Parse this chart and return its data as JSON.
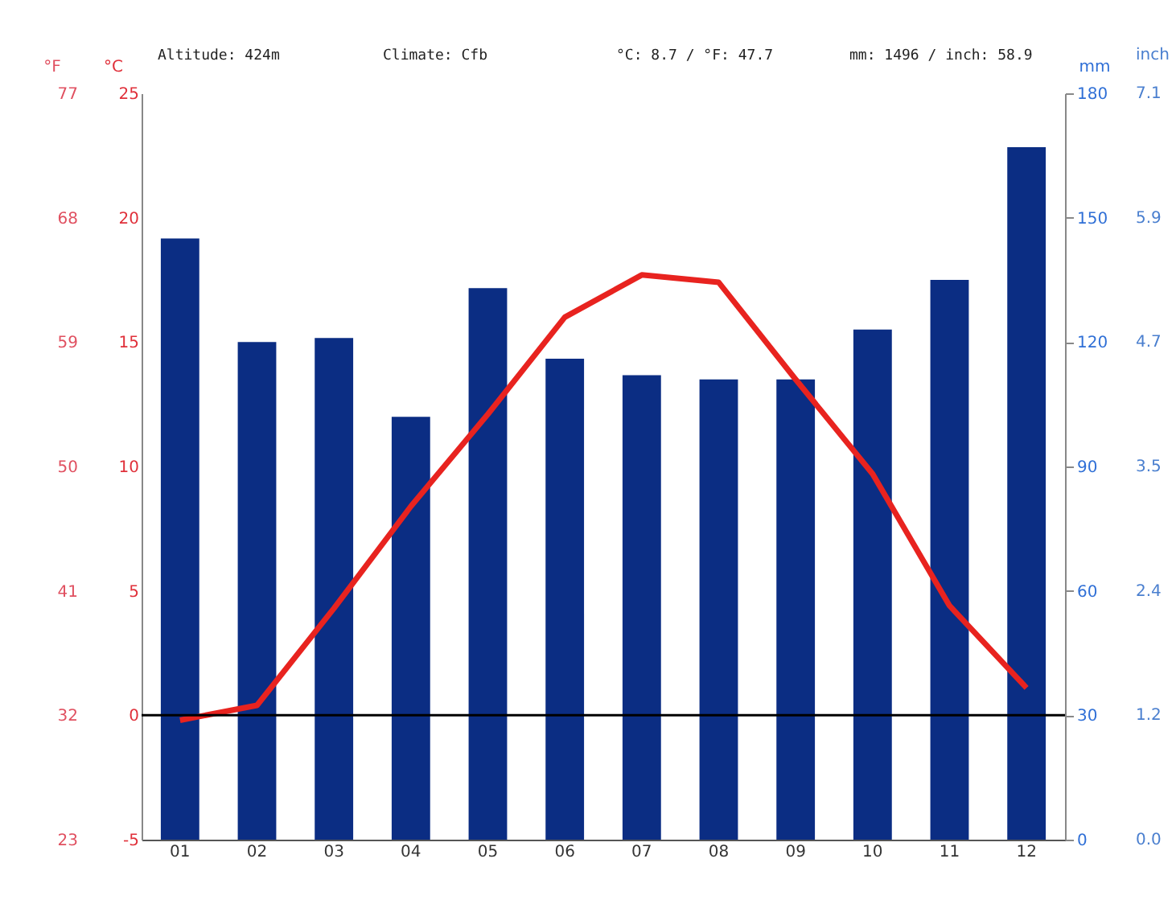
{
  "chart_data": {
    "type": "bar",
    "categories": [
      "01",
      "02",
      "03",
      "04",
      "05",
      "06",
      "07",
      "08",
      "09",
      "10",
      "11",
      "12"
    ],
    "series": [
      {
        "axis": "y2",
        "color": "#0b2d83",
        "values": [
          145,
          120,
          121,
          102,
          133,
          116,
          112,
          111,
          111,
          123,
          135,
          167
        ]
      },
      {
        "type": "line",
        "color": "#e8231f",
        "values": [
          -0.2,
          0.4,
          4.3,
          8.4,
          12.1,
          16.0,
          17.7,
          17.4,
          13.5,
          9.7,
          4.4,
          1.1
        ]
      }
    ],
    "ylabel": "°C",
    "ylim": [
      -5,
      25
    ],
    "yticks": [
      -5,
      0,
      5,
      10,
      15,
      20,
      25
    ],
    "y3label": "°F",
    "y3lim": [
      23,
      77
    ],
    "y3ticks": [
      23,
      32,
      41,
      50,
      59,
      68,
      77
    ],
    "y2label": "mm",
    "y2lim": [
      0,
      180
    ],
    "y2ticks": [
      0,
      30,
      60,
      90,
      120,
      150,
      180
    ],
    "ref_lines": [
      {
        "axis": "y",
        "value": 0,
        "color": "#000000"
      }
    ],
    "annotations": [
      "Altitude: 424m",
      "Climate: Cfb",
      "°C: 8.7 / °F: 47.7",
      "mm: 1496 / inch: 58.9",
      "inch",
      "0.0",
      "1.2",
      "2.4",
      "3.5",
      "4.7",
      "5.9",
      "7.1"
    ],
    "grid": false,
    "line_style": "solid"
  }
}
